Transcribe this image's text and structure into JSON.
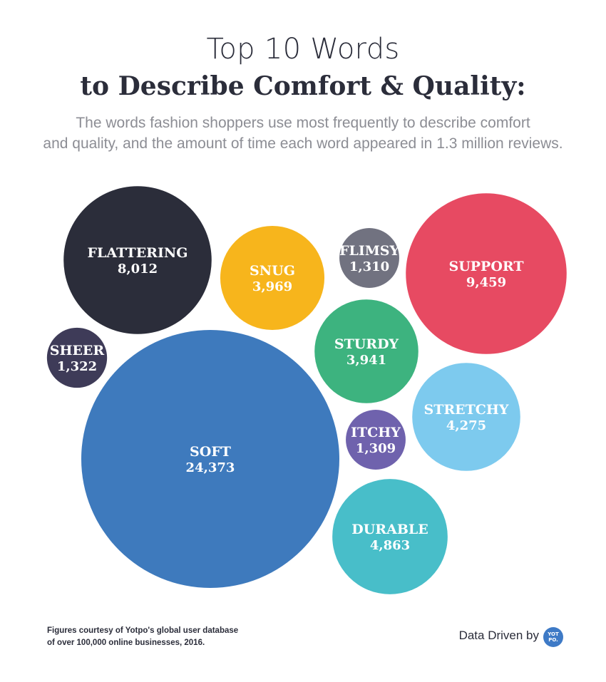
{
  "header": {
    "title_line1": "Top 10 Words",
    "title_line2": "to Describe Comfort & Quality:",
    "subtitle_line1": "The words fashion shoppers use most frequently to describe comfort",
    "subtitle_line2": "and quality, and the amount of time each word appeared in 1.3 million reviews."
  },
  "chart_data": {
    "type": "bubble",
    "title": "Top 10 Words to Describe Comfort & Quality:",
    "items": [
      {
        "word": "FLATTERING",
        "count": 8012,
        "label": "8,012",
        "color": "#2b2d3a"
      },
      {
        "word": "SNUG",
        "count": 3969,
        "label": "3,969",
        "color": "#f7b51c"
      },
      {
        "word": "FLIMSY",
        "count": 1310,
        "label": "1,310",
        "color": "#717280"
      },
      {
        "word": "SUPPORT",
        "count": 9459,
        "label": "9,459",
        "color": "#e74a62"
      },
      {
        "word": "SHEER",
        "count": 1322,
        "label": "1,322",
        "color": "#3e3b58"
      },
      {
        "word": "STURDY",
        "count": 3941,
        "label": "3,941",
        "color": "#3db37f"
      },
      {
        "word": "SOFT",
        "count": 24373,
        "label": "24,373",
        "color": "#3e7abd"
      },
      {
        "word": "STRETCHY",
        "count": 4275,
        "label": "4,275",
        "color": "#7dcaee"
      },
      {
        "word": "ITCHY",
        "count": 1309,
        "label": "1,309",
        "color": "#6f62ad"
      },
      {
        "word": "DURABLE",
        "count": 4863,
        "label": "4,863",
        "color": "#48bec9"
      }
    ]
  },
  "footer": {
    "note_line1": "Figures courtesy of Yotpo's global user database",
    "note_line2": "of over 100,000 online businesses, 2016.",
    "credit": "Data Driven by",
    "logo_line1": "YOT",
    "logo_line2": "PO."
  }
}
